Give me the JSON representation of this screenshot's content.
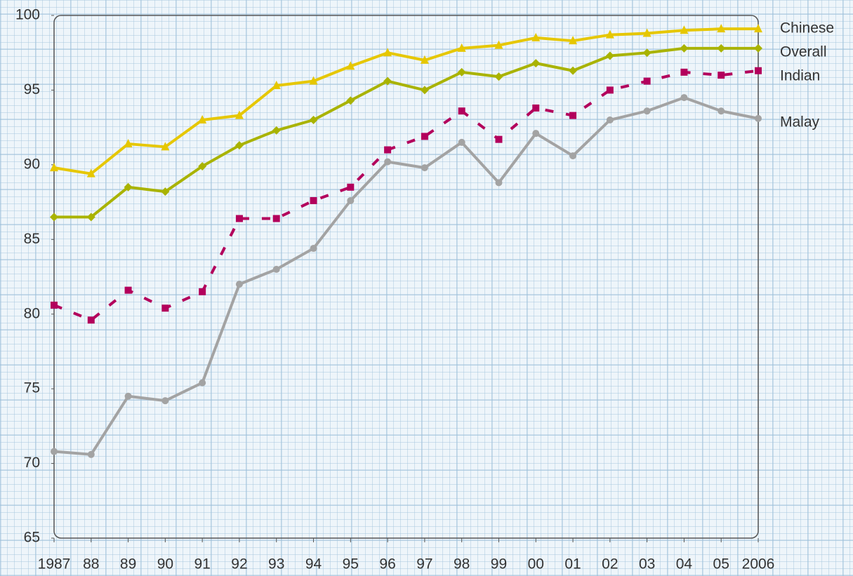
{
  "chart_data": {
    "type": "line",
    "categories": [
      "1987",
      "88",
      "89",
      "90",
      "91",
      "92",
      "93",
      "94",
      "95",
      "96",
      "97",
      "98",
      "99",
      "00",
      "01",
      "02",
      "03",
      "04",
      "05",
      "2006"
    ],
    "series": [
      {
        "name": "Chinese",
        "color": "#e6c700",
        "marker": "triangle",
        "dash": false,
        "values": [
          89.8,
          89.4,
          91.4,
          91.2,
          93.0,
          93.3,
          95.3,
          95.6,
          96.6,
          97.5,
          97.0,
          97.8,
          98.0,
          98.5,
          98.3,
          98.7,
          98.8,
          99.0,
          99.1,
          99.1
        ]
      },
      {
        "name": "Overall",
        "color": "#a9b300",
        "marker": "diamond",
        "dash": false,
        "values": [
          86.5,
          86.5,
          88.5,
          88.2,
          89.9,
          91.3,
          92.3,
          93.0,
          94.3,
          95.6,
          95.0,
          96.2,
          95.9,
          96.8,
          96.3,
          97.3,
          97.5,
          97.8,
          97.8,
          97.8
        ]
      },
      {
        "name": "Indian",
        "color": "#b3005c",
        "marker": "square",
        "dash": true,
        "values": [
          80.6,
          79.6,
          81.6,
          80.4,
          81.5,
          86.4,
          86.4,
          87.6,
          88.5,
          91.0,
          91.9,
          93.6,
          91.7,
          93.8,
          93.3,
          95.0,
          95.6,
          96.2,
          96.0,
          96.3
        ]
      },
      {
        "name": "Malay",
        "color": "#a3a3a3",
        "marker": "circle",
        "dash": false,
        "values": [
          70.8,
          70.6,
          74.5,
          74.2,
          75.4,
          82.0,
          83.0,
          84.4,
          87.6,
          90.2,
          89.8,
          91.5,
          88.8,
          92.1,
          90.6,
          93.0,
          93.6,
          94.5,
          93.6,
          93.1
        ]
      }
    ],
    "ylim": [
      65,
      100
    ],
    "yticks": [
      65,
      70,
      75,
      80,
      85,
      90,
      95,
      100
    ]
  }
}
